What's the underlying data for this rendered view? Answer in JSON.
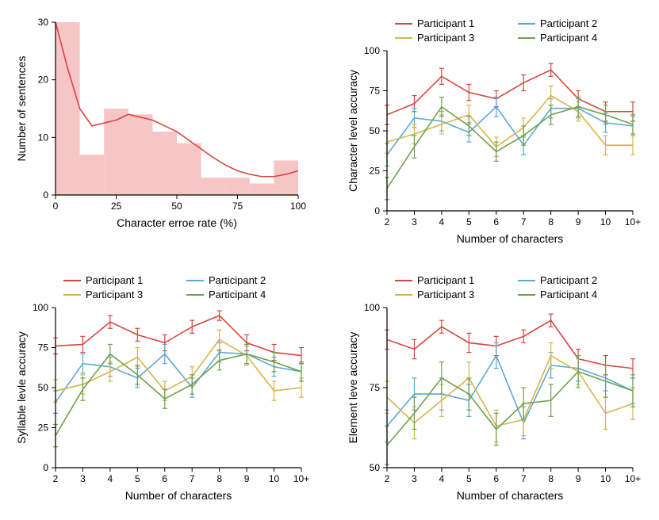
{
  "figure": {
    "background_color": "#ffffff",
    "font_family": "Arial",
    "axis_color": "#000000",
    "tick_fontsize": 12,
    "label_fontsize": 14,
    "legend_fontsize": 13,
    "line_width": 1.6,
    "errorbar_width": 1.2,
    "errorbar_cap": 3
  },
  "participants": {
    "p1": {
      "label": "Participant 1",
      "color": "#d7473e"
    },
    "p2": {
      "label": "Participant 2",
      "color": "#5aa9d6"
    },
    "p3": {
      "label": "Participant 3",
      "color": "#d9b34a"
    },
    "p4": {
      "label": "Participant 4",
      "color": "#6ea24b"
    }
  },
  "histogram": {
    "type": "histogram",
    "xlabel": "Character erroe rate (%)",
    "ylabel": "Number of sentences",
    "xlim": [
      0,
      100
    ],
    "ylim": [
      0,
      30
    ],
    "xticks": [
      0,
      25,
      50,
      75,
      100
    ],
    "yticks": [
      0,
      10,
      20,
      30
    ],
    "bar_color": "#f6c5c5",
    "bar_opacity": 1.0,
    "bin_width": 10,
    "bins": [
      0,
      10,
      20,
      30,
      40,
      50,
      60,
      70,
      80,
      90,
      100
    ],
    "counts": [
      30,
      7,
      15,
      14,
      11,
      9,
      3,
      3,
      2,
      6
    ],
    "kde_color": "#d7473e",
    "kde_width": 1.6,
    "kde_points": [
      [
        0,
        30
      ],
      [
        5,
        22
      ],
      [
        10,
        15
      ],
      [
        15,
        12
      ],
      [
        20,
        12.5
      ],
      [
        25,
        13
      ],
      [
        30,
        14
      ],
      [
        35,
        13.5
      ],
      [
        40,
        13
      ],
      [
        45,
        12
      ],
      [
        50,
        11
      ],
      [
        55,
        9.5
      ],
      [
        60,
        8
      ],
      [
        65,
        6.5
      ],
      [
        70,
        5.2
      ],
      [
        75,
        4.2
      ],
      [
        80,
        3.6
      ],
      [
        85,
        3.2
      ],
      [
        90,
        3.2
      ],
      [
        95,
        3.6
      ],
      [
        100,
        4.2
      ]
    ]
  },
  "line_common": {
    "xlabel": "Number of characters",
    "categories": [
      "2",
      "3",
      "4",
      "5",
      "6",
      "7",
      "8",
      "9",
      "10",
      "10+"
    ],
    "xtick_positions": [
      2,
      3,
      4,
      5,
      6,
      7,
      8,
      9,
      10,
      11
    ]
  },
  "char_level": {
    "type": "line",
    "ylabel": "Character level accuracy",
    "ylim": [
      0,
      100
    ],
    "yticks": [
      0,
      25,
      50,
      75,
      100
    ],
    "series": {
      "p1": {
        "y": [
          60,
          67,
          84,
          74,
          70,
          80,
          88,
          70,
          62,
          62
        ],
        "err": [
          6,
          5,
          5,
          5,
          5,
          5,
          4,
          5,
          6,
          6
        ]
      },
      "p2": {
        "y": [
          35,
          58,
          56,
          49,
          65,
          41,
          64,
          64,
          55,
          53
        ],
        "err": [
          7,
          6,
          6,
          6,
          6,
          6,
          6,
          6,
          6,
          6
        ]
      },
      "p3": {
        "y": [
          43,
          48,
          54,
          60,
          40,
          52,
          72,
          62,
          41,
          41
        ],
        "err": [
          7,
          6,
          6,
          6,
          6,
          6,
          6,
          6,
          6,
          6
        ]
      },
      "p4": {
        "y": [
          14,
          40,
          65,
          53,
          37,
          47,
          60,
          65,
          60,
          54
        ],
        "err": [
          7,
          7,
          6,
          6,
          6,
          6,
          6,
          6,
          6,
          6
        ]
      }
    }
  },
  "syllable_level": {
    "type": "line",
    "ylabel": "Syllable levle accuracy",
    "ylim": [
      0,
      100
    ],
    "yticks": [
      0,
      25,
      50,
      75,
      100
    ],
    "series": {
      "p1": {
        "y": [
          76,
          77,
          91,
          83,
          78,
          88,
          95,
          78,
          72,
          70
        ],
        "err": [
          5,
          5,
          4,
          4,
          5,
          4,
          3,
          5,
          5,
          5
        ]
      },
      "p2": {
        "y": [
          41,
          65,
          63,
          56,
          71,
          50,
          72,
          71,
          63,
          60
        ],
        "err": [
          7,
          6,
          6,
          6,
          6,
          6,
          6,
          6,
          6,
          6
        ]
      },
      "p3": {
        "y": [
          48,
          52,
          60,
          69,
          48,
          57,
          80,
          70,
          48,
          50
        ],
        "err": [
          7,
          6,
          6,
          6,
          6,
          6,
          6,
          6,
          6,
          6
        ]
      },
      "p4": {
        "y": [
          20,
          49,
          71,
          58,
          43,
          52,
          67,
          71,
          66,
          60
        ],
        "err": [
          7,
          7,
          6,
          6,
          6,
          6,
          6,
          6,
          6,
          6
        ]
      }
    }
  },
  "element_level": {
    "type": "line",
    "ylabel": "Element leve accuracy",
    "ylim": [
      50,
      100
    ],
    "yticks": [
      50,
      75,
      100
    ],
    "series": {
      "p1": {
        "y": [
          90,
          87,
          94,
          89,
          88,
          91,
          96,
          84,
          82,
          81
        ],
        "err": [
          3,
          3,
          2,
          3,
          3,
          2,
          2,
          3,
          3,
          3
        ]
      },
      "p2": {
        "y": [
          63,
          73,
          73,
          71,
          85,
          64,
          82,
          81,
          78,
          74
        ],
        "err": [
          5,
          5,
          5,
          5,
          4,
          5,
          4,
          4,
          4,
          4
        ]
      },
      "p3": {
        "y": [
          72,
          64,
          71,
          78,
          63,
          65,
          85,
          80,
          67,
          70
        ],
        "err": [
          5,
          5,
          5,
          5,
          5,
          5,
          4,
          4,
          5,
          5
        ]
      },
      "p4": {
        "y": [
          57,
          67,
          78,
          73,
          62,
          70,
          71,
          80,
          77,
          74
        ],
        "err": [
          6,
          5,
          5,
          5,
          5,
          5,
          5,
          5,
          5,
          5
        ]
      }
    }
  }
}
